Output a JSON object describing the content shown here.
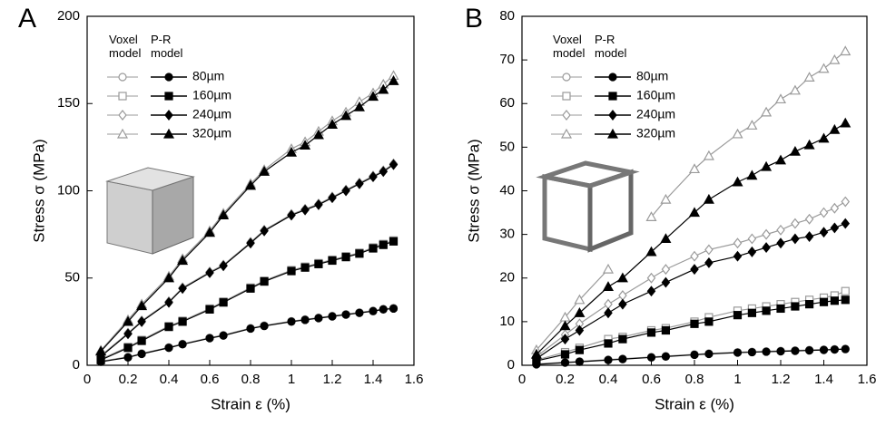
{
  "chart_data": [
    {
      "type": "line",
      "panel_label": "A",
      "xlabel": "Strain ε (%)",
      "ylabel": "Stress σ (MPa)",
      "xlim": [
        0,
        1.6
      ],
      "ylim": [
        0,
        200
      ],
      "xticks": [
        0,
        0.2,
        0.4,
        0.6,
        0.8,
        1,
        1.2,
        1.4,
        1.6
      ],
      "yticks": [
        0,
        50,
        100,
        150,
        200
      ],
      "x": [
        0.067,
        0.2,
        0.267,
        0.4,
        0.467,
        0.6,
        0.667,
        0.8,
        0.867,
        1.0,
        1.067,
        1.133,
        1.2,
        1.267,
        1.333,
        1.4,
        1.45,
        1.5
      ],
      "legend_columns": [
        "Voxel model",
        "P-R model"
      ],
      "colors": {
        "voxel": "#9a9a9a",
        "pr": "#000000"
      },
      "series": [
        {
          "name": "80µm",
          "marker": "circle",
          "values": [
            2,
            4.5,
            6.5,
            10,
            12,
            15.5,
            17,
            21,
            22.5,
            25,
            26,
            27,
            28,
            29,
            30,
            31,
            32,
            32.5
          ],
          "voxel_values": [
            2.3,
            4.8,
            6.8,
            10.3,
            12.3,
            15.8,
            17.3,
            21.3,
            22.8,
            25.3,
            26.3,
            27.3,
            28.3,
            29.3,
            30.3,
            31.3,
            32.3,
            32.8
          ]
        },
        {
          "name": "160µm",
          "marker": "square",
          "values": [
            3,
            10,
            14,
            22,
            25,
            32,
            36,
            44,
            48,
            54,
            56,
            58,
            60,
            62,
            64,
            67,
            69,
            71
          ],
          "voxel_values": [
            3.5,
            10.5,
            14.5,
            22.5,
            25.5,
            32.5,
            36.5,
            44.5,
            48.5,
            54.5,
            56.5,
            58.5,
            60.5,
            62.5,
            64.5,
            67.5,
            69.5,
            71.5
          ]
        },
        {
          "name": "240µm",
          "marker": "diamond",
          "values": [
            5,
            18,
            25,
            36,
            44,
            53,
            57,
            70,
            77,
            86,
            89,
            92,
            96,
            100,
            104,
            108,
            111,
            115
          ],
          "voxel_values": [
            5.5,
            18.5,
            25.5,
            36.5,
            44.5,
            53.5,
            57.5,
            70.5,
            77.5,
            86.5,
            89.5,
            92.5,
            96.5,
            100.5,
            104.5,
            108.5,
            111.5,
            115.5
          ]
        },
        {
          "name": "320µm",
          "marker": "triangle",
          "values": [
            8,
            25,
            34,
            50,
            60,
            76,
            86,
            103,
            111,
            122,
            126,
            132,
            138,
            143,
            148,
            154,
            158,
            163
          ],
          "voxel_values": [
            8.5,
            26,
            35,
            51,
            61,
            77,
            87,
            104,
            112,
            124,
            128,
            134,
            140,
            145,
            151,
            156,
            161,
            166
          ]
        }
      ]
    },
    {
      "type": "line",
      "panel_label": "B",
      "xlabel": "Strain ε (%)",
      "ylabel": "Stress σ (MPa)",
      "xlim": [
        0,
        1.6
      ],
      "ylim": [
        0,
        80
      ],
      "xticks": [
        0,
        0.2,
        0.4,
        0.6,
        0.8,
        1,
        1.2,
        1.4,
        1.6
      ],
      "yticks": [
        0,
        10,
        20,
        30,
        40,
        50,
        60,
        70,
        80
      ],
      "x": [
        0.067,
        0.2,
        0.267,
        0.4,
        0.467,
        0.6,
        0.667,
        0.8,
        0.867,
        1.0,
        1.067,
        1.133,
        1.2,
        1.267,
        1.333,
        1.4,
        1.45,
        1.5
      ],
      "legend_columns": [
        "Voxel model",
        "P-R model"
      ],
      "colors": {
        "voxel": "#9a9a9a",
        "pr": "#000000"
      },
      "series": [
        {
          "name": "80µm",
          "marker": "circle",
          "values": [
            0.2,
            0.6,
            0.8,
            1.2,
            1.4,
            1.8,
            2.0,
            2.4,
            2.6,
            2.9,
            3.0,
            3.1,
            3.2,
            3.3,
            3.4,
            3.5,
            3.6,
            3.7
          ],
          "voxel_values": [
            0.3,
            0.7,
            0.9,
            1.3,
            1.5,
            1.9,
            2.1,
            2.5,
            2.7,
            3.0,
            3.1,
            3.2,
            3.3,
            3.4,
            3.5,
            3.6,
            3.7,
            3.8
          ]
        },
        {
          "name": "160µm",
          "marker": "square",
          "values": [
            1,
            2.5,
            3.5,
            5,
            6,
            7.5,
            8,
            9.5,
            10,
            11.5,
            12,
            12.5,
            13,
            13.5,
            14,
            14.5,
            14.8,
            15
          ],
          "voxel_values": [
            1.2,
            3,
            4,
            6,
            6.5,
            8,
            8.5,
            10,
            11,
            12.5,
            13,
            13.5,
            14,
            14.5,
            15,
            15.5,
            16,
            17
          ]
        },
        {
          "name": "240µm",
          "marker": "diamond",
          "values": [
            1.5,
            6,
            8,
            12,
            14,
            17,
            19,
            22,
            23.5,
            25,
            26,
            27,
            28,
            29,
            29.5,
            30.5,
            31.5,
            32.5
          ],
          "voxel_values": [
            2,
            7,
            9.5,
            14,
            16,
            20,
            22,
            25,
            26.5,
            28,
            29,
            30,
            31,
            32.5,
            33.5,
            35,
            36,
            37.5
          ]
        },
        {
          "name": "320µm",
          "marker": "triangle",
          "values": [
            2.5,
            9,
            12,
            18,
            20,
            26,
            29,
            35,
            38,
            42,
            43.5,
            45.5,
            47,
            49,
            50.5,
            52,
            54,
            55.5
          ],
          "voxel_values": [
            3.5,
            11,
            15,
            22,
            null,
            34,
            38,
            45,
            48,
            53,
            55,
            58,
            61,
            63,
            66,
            68,
            70,
            72
          ]
        }
      ]
    }
  ]
}
